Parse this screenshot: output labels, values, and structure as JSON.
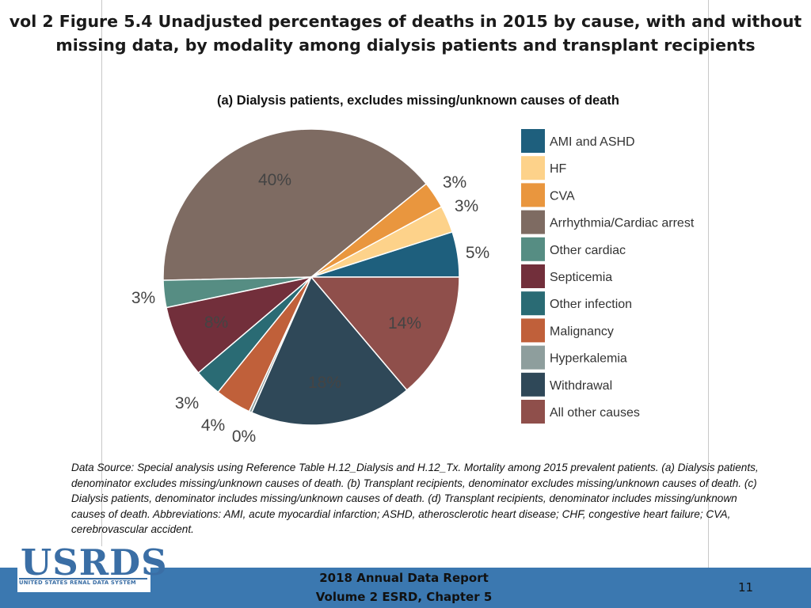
{
  "slide": {
    "title_line1": "vol 2 Figure 5.4 Unadjusted percentages of deaths in 2015 by cause, with and without",
    "title_line2": "missing data, by modality among dialysis patients and transplant recipients"
  },
  "chart_data": {
    "type": "pie",
    "title": "(a) Dialysis patients, excludes missing/unknown causes of death",
    "slices": [
      {
        "name": "AMI and ASHD",
        "value": 5,
        "label": "5%",
        "color": "#1e5f7d"
      },
      {
        "name": "HF",
        "value": 3,
        "label": "3%",
        "color": "#fdd28a"
      },
      {
        "name": "CVA",
        "value": 3,
        "label": "3%",
        "color": "#e9963e"
      },
      {
        "name": "Arrhythmia/Cardiac arrest",
        "value": 40,
        "label": "40%",
        "color": "#7e6b62"
      },
      {
        "name": "Other cardiac",
        "value": 3,
        "label": "3%",
        "color": "#568d83"
      },
      {
        "name": "Septicemia",
        "value": 8,
        "label": "8%",
        "color": "#722f3b"
      },
      {
        "name": "Other infection",
        "value": 3,
        "label": "3%",
        "color": "#2a6b74"
      },
      {
        "name": "Malignancy",
        "value": 4,
        "label": "4%",
        "color": "#c0603a"
      },
      {
        "name": "Hyperkalemia",
        "value": 0.3,
        "label": "0%",
        "color": "#8e9e9d"
      },
      {
        "name": "Withdrawal",
        "value": 18,
        "label": "18%",
        "color": "#2f4858"
      },
      {
        "name": "All other causes",
        "value": 14,
        "label": "14%",
        "color": "#8f4f4b"
      }
    ],
    "legend_position": "right"
  },
  "source_note": "Data Source: Special analysis using Reference Table H.12_Dialysis and H.12_Tx. Mortality among 2015 prevalent patients. (a) Dialysis patients, denominator excludes missing/unknown causes of death. (b) Transplant recipients, denominator excludes missing/unknown causes of death. (c) Dialysis patients, denominator includes missing/unknown causes of death. (d) Transplant recipients, denominator includes missing/unknown causes of death. Abbreviations: AMI,  acute myocardial infarction; ASHD, atherosclerotic heart disease; CHF, congestive heart failure; CVA, cerebrovascular accident.",
  "logo": {
    "text": "USRDS",
    "subtitle": "UNITED STATES RENAL DATA SYSTEM"
  },
  "footer": {
    "line1": "2018 Annual Data Report",
    "line2": "Volume 2 ESRD, Chapter 5",
    "page_number": "11"
  }
}
